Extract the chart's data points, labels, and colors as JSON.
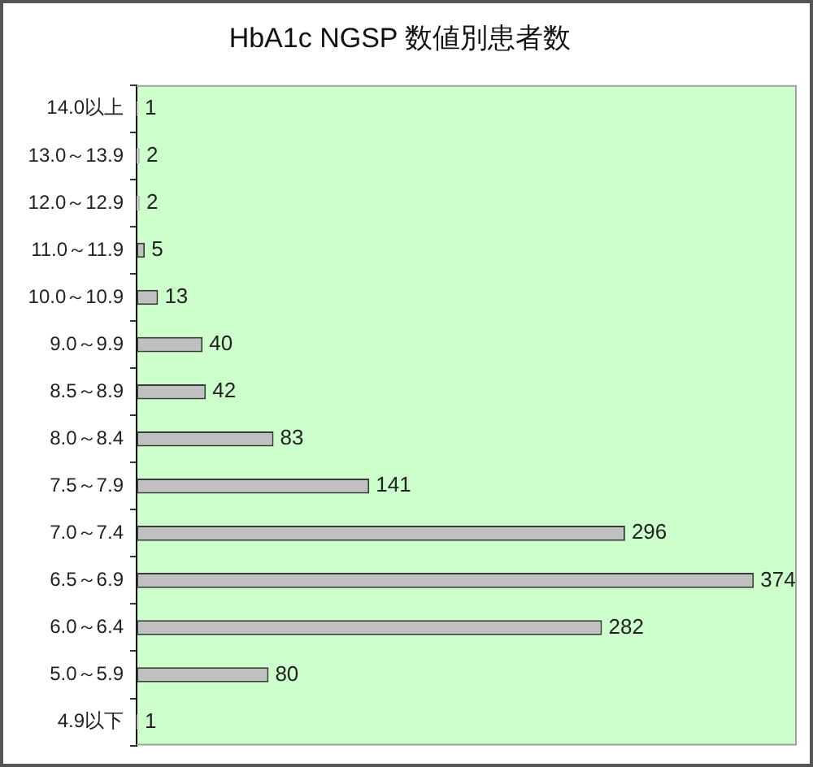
{
  "chart_data": {
    "type": "bar",
    "orientation": "horizontal",
    "title": "HbA1c NGSP 数値別患者数",
    "categories": [
      "14.0以上",
      "13.0～13.9",
      "12.0～12.9",
      "11.0～11.9",
      "10.0～10.9",
      "9.0～9.9",
      "8.5～8.9",
      "8.0～8.4",
      "7.5～7.9",
      "7.0～7.4",
      "6.5～6.9",
      "6.0～6.4",
      "5.0～5.9",
      "4.9以下"
    ],
    "values": [
      1,
      2,
      2,
      5,
      13,
      40,
      42,
      83,
      141,
      296,
      374,
      282,
      80,
      1
    ],
    "color": "#c0c0c0",
    "xlim": [
      0,
      400
    ],
    "tick_labels": "y",
    "data_labels": true
  }
}
